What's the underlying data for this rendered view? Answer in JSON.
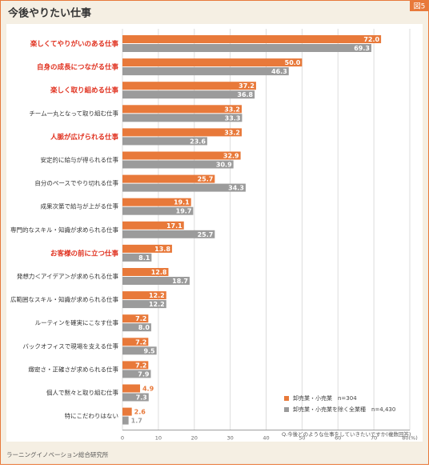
{
  "chart_data": {
    "type": "hbar",
    "title": "今後やりたい仕事",
    "badge": "図5",
    "categories": [
      "楽しくてやりがいのある仕事",
      "自身の成長につながる仕事",
      "楽しく取り組める仕事",
      "チーム一丸となって取り組む仕事",
      "人脈が広げられる仕事",
      "安定的に給与が得られる仕事",
      "自分のペースでやり切れる仕事",
      "成果次第で給与が上がる仕事",
      "専門的なスキル・知識が求められる仕事",
      "お客様の前に立つ仕事",
      "発想力＜アイデア＞が求められる仕事",
      "広範囲なスキル・知識が求められる仕事",
      "ルーティンを確実にこなす仕事",
      "バックオフィスで現場を支える仕事",
      "緻密さ・正確さが求められる仕事",
      "個人で黙々と取り組む仕事",
      "特にこだわりはない"
    ],
    "highlighted": [
      true,
      true,
      true,
      false,
      true,
      false,
      false,
      false,
      false,
      true,
      false,
      false,
      false,
      false,
      false,
      false,
      false
    ],
    "series": [
      {
        "name": "卸売業・小売業　n=304",
        "color": "#e8793a",
        "values": [
          72.0,
          50.0,
          37.2,
          33.2,
          33.2,
          32.9,
          25.7,
          19.1,
          17.1,
          13.8,
          12.8,
          12.2,
          7.2,
          7.2,
          7.2,
          4.9,
          2.6
        ],
        "value_labels": [
          "72.0",
          "50.0",
          "37.2",
          "33.2",
          "33.2",
          "32.9",
          "25.7",
          "19.1",
          "17.1",
          "13.8",
          "12.8",
          "12.2",
          "7.2",
          "7.2",
          "7.2",
          "4.9",
          "2.6"
        ]
      },
      {
        "name": "卸売業・小売業を除く全業種　n=4,430",
        "color": "#9b9b9b",
        "values": [
          69.3,
          46.3,
          36.8,
          33.3,
          23.6,
          30.9,
          34.3,
          19.7,
          25.7,
          8.1,
          18.7,
          12.2,
          8.0,
          9.5,
          7.9,
          7.3,
          1.7
        ],
        "value_labels": [
          "69.3",
          "46.3",
          "36.8",
          "33.3",
          "23.6",
          "30.9",
          "34.3",
          "19.7",
          "25.7",
          "8.1",
          "18.7",
          "12.2",
          "8.0",
          "9.5",
          "7.9",
          "7.3",
          "1.7"
        ]
      }
    ],
    "xlim": [
      0,
      80
    ],
    "xticks": [
      0,
      10,
      20,
      30,
      40,
      50,
      60,
      70,
      {
        "value": 80,
        "label": "80(%)"
      }
    ],
    "grid": true,
    "legend": "lower right",
    "note": "Q.今後どのような仕事をしていきたいですか(複数回答)",
    "source": "ラーニングイノベーション総合研究所"
  }
}
